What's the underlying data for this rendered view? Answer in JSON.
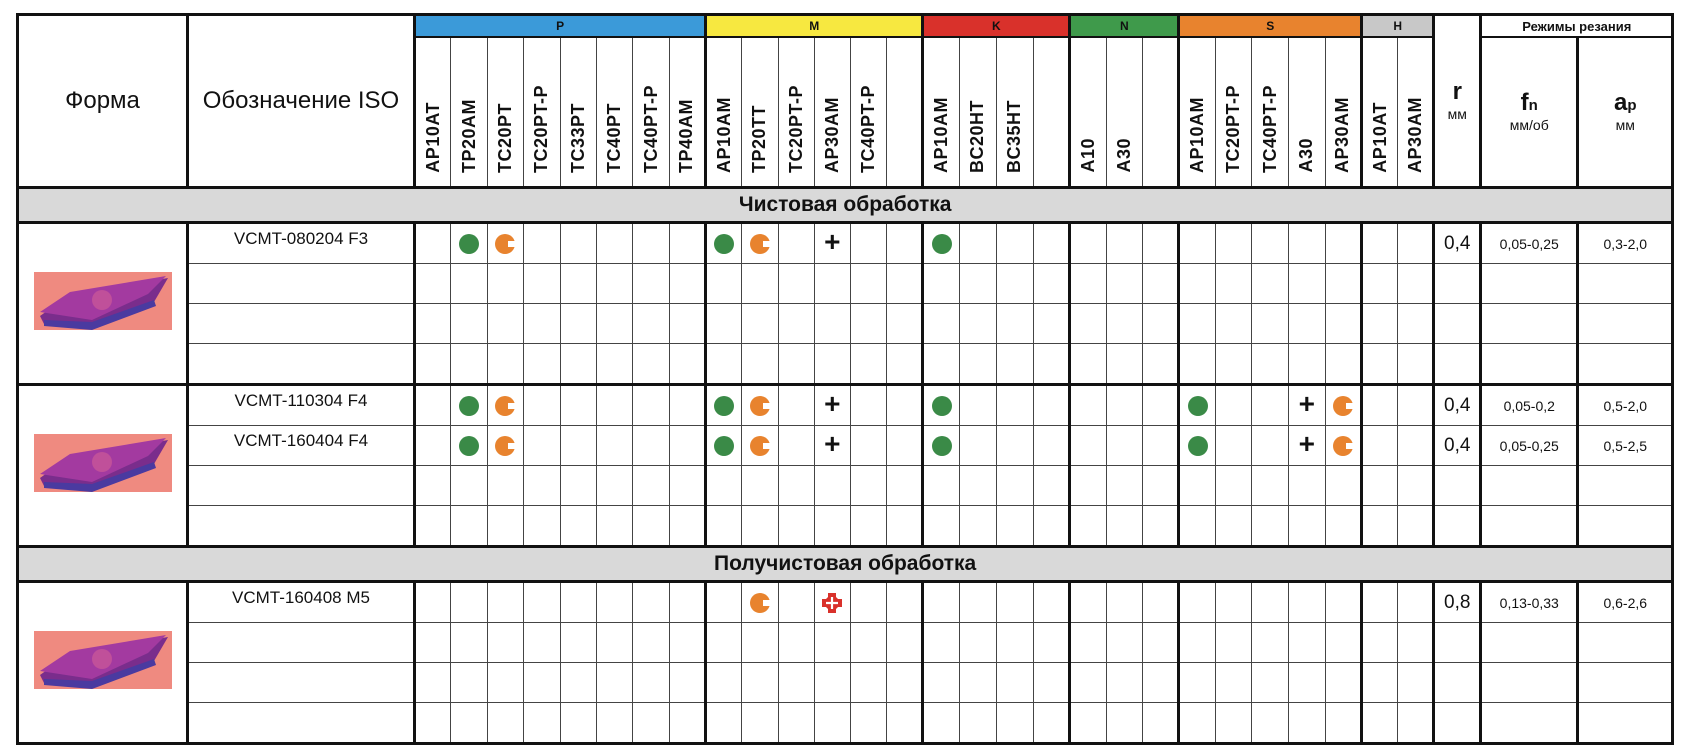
{
  "header": {
    "forma": "Форма",
    "iso": "Обозначение ISO",
    "r": {
      "symbol": "r",
      "unit": "мм"
    },
    "regimes": "Режимы резания",
    "fn": {
      "symbol": "f",
      "sub": "n",
      "unit": "мм/об"
    },
    "ap": {
      "symbol": "a",
      "sub": "p",
      "unit": "мм"
    },
    "groups": [
      {
        "label": "P",
        "color": "#3b9ad9",
        "grades": [
          "AP10AT",
          "TP20AM",
          "TC20PT",
          "TC20PT-P",
          "TC33PT",
          "TC40PT",
          "TC40PT-P",
          "TP40AM"
        ]
      },
      {
        "label": "M",
        "color": "#f7e840",
        "grades": [
          "AP10AM",
          "TP20TT",
          "TC20PT-P",
          "AP30AM",
          "TC40PT-P",
          ""
        ]
      },
      {
        "label": "K",
        "color": "#d9312b",
        "grades": [
          "AP10AM",
          "BC20HT",
          "BC35HT",
          ""
        ]
      },
      {
        "label": "N",
        "color": "#3f9a4b",
        "grades": [
          "A10",
          "A30",
          ""
        ]
      },
      {
        "label": "S",
        "color": "#e8832e",
        "grades": [
          "AP10AM",
          "TC20PT-P",
          "TC40PT-P",
          "A30",
          "AP30AM"
        ]
      },
      {
        "label": "H",
        "color": "#c8c8c8",
        "grades": [
          "AP10AT",
          "AP30AM"
        ]
      }
    ]
  },
  "legend_colors": {
    "good": "#3a8a47",
    "satisfactory": "#e8832e",
    "conditional": "#111111",
    "not_recommended": "#d9312b"
  },
  "sections": [
    {
      "title": "Чистовая обработка",
      "groups": [
        {
          "rows": [
            {
              "iso": "VCMT-080204 F3",
              "r": "0,4",
              "fn": "0,05-0,25",
              "ap": "0,3-2,0",
              "marks": [
                "",
                "dot",
                "pac",
                "",
                "",
                "",
                "",
                "",
                "dot",
                "pac",
                "",
                "plus",
                "",
                "",
                "dot",
                "",
                "",
                "",
                "",
                "",
                "",
                "",
                "",
                "",
                "",
                "",
                "",
                ""
              ]
            },
            {
              "iso": "",
              "r": "",
              "fn": "",
              "ap": "",
              "marks": []
            },
            {
              "iso": "",
              "r": "",
              "fn": "",
              "ap": "",
              "marks": []
            },
            {
              "iso": "",
              "r": "",
              "fn": "",
              "ap": "",
              "marks": []
            }
          ]
        },
        {
          "rows": [
            {
              "iso": "VCMT-110304 F4",
              "r": "0,4",
              "fn": "0,05-0,2",
              "ap": "0,5-2,0",
              "marks": [
                "",
                "dot",
                "pac",
                "",
                "",
                "",
                "",
                "",
                "dot",
                "pac",
                "",
                "plus",
                "",
                "",
                "dot",
                "",
                "",
                "",
                "",
                "",
                "",
                "dot",
                "",
                "",
                "plus",
                "pac",
                "",
                ""
              ]
            },
            {
              "iso": "VCMT-160404 F4",
              "r": "0,4",
              "fn": "0,05-0,25",
              "ap": "0,5-2,5",
              "marks": [
                "",
                "dot",
                "pac",
                "",
                "",
                "",
                "",
                "",
                "dot",
                "pac",
                "",
                "plus",
                "",
                "",
                "dot",
                "",
                "",
                "",
                "",
                "",
                "",
                "dot",
                "",
                "",
                "plus",
                "pac",
                "",
                ""
              ]
            },
            {
              "iso": "",
              "r": "",
              "fn": "",
              "ap": "",
              "marks": []
            },
            {
              "iso": "",
              "r": "",
              "fn": "",
              "ap": "",
              "marks": []
            }
          ]
        }
      ]
    },
    {
      "title": "Получистовая обработка",
      "groups": [
        {
          "rows": [
            {
              "iso": "VCMT-160408 M5",
              "r": "0,8",
              "fn": "0,13-0,33",
              "ap": "0,6-2,6",
              "marks": [
                "",
                "",
                "",
                "",
                "",
                "",
                "",
                "",
                "",
                "pac",
                "",
                "cross",
                "",
                "",
                "",
                "",
                "",
                "",
                "",
                "",
                "",
                "",
                "",
                "",
                "",
                "",
                "",
                ""
              ]
            },
            {
              "iso": "",
              "r": "",
              "fn": "",
              "ap": "",
              "marks": []
            },
            {
              "iso": "",
              "r": "",
              "fn": "",
              "ap": "",
              "marks": []
            },
            {
              "iso": "",
              "r": "",
              "fn": "",
              "ap": "",
              "marks": []
            }
          ]
        }
      ]
    }
  ]
}
